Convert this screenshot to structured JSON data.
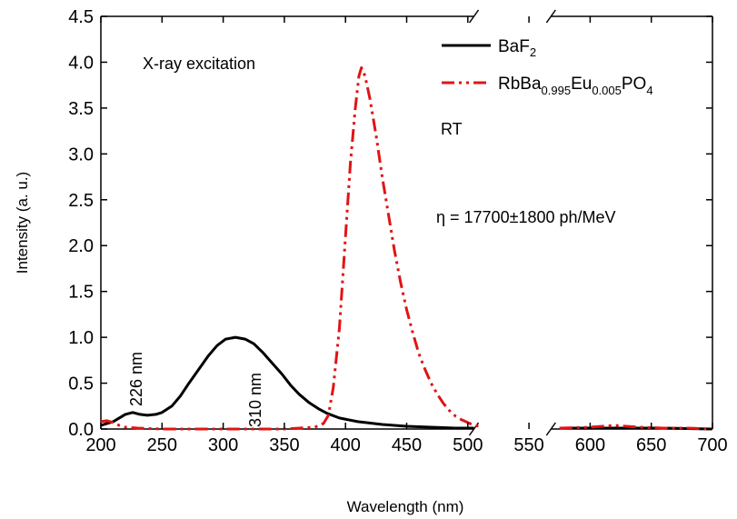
{
  "chart_data": {
    "type": "line",
    "xlabel": "Wavelength (nm)",
    "ylabel": "Intensity (a. u.)",
    "xlim": [
      200,
      700
    ],
    "ylim": [
      0.0,
      4.5
    ],
    "axis_break": [
      510,
      570
    ],
    "x_tick_labels": [
      "200",
      "250",
      "300",
      "350",
      "400",
      "450",
      "500",
      "550",
      "600",
      "650",
      "700"
    ],
    "y_tick_labels": [
      "0.0",
      "0.5",
      "1.0",
      "1.5",
      "2.0",
      "2.5",
      "3.0",
      "3.5",
      "4.0",
      "4.5"
    ],
    "legend_position": "top-right",
    "annotations": {
      "xray": "X-ray excitation",
      "rt": "RT",
      "eta": "η = 17700±1800 ph/MeV",
      "peak226": "226 nm",
      "peak310": "310 nm"
    },
    "legend": {
      "baf2": {
        "base": "BaF",
        "sub": "2"
      },
      "rbba": {
        "p1": "RbBa",
        "s1": "0.995",
        "p2": "Eu",
        "s2": "0.005",
        "p3": "PO",
        "s3": "4"
      }
    },
    "series": [
      {
        "key": "baf2",
        "color": "#000000",
        "style": "solid",
        "points": [
          [
            200,
            0.04
          ],
          [
            205,
            0.06
          ],
          [
            210,
            0.08
          ],
          [
            215,
            0.12
          ],
          [
            220,
            0.16
          ],
          [
            226,
            0.18
          ],
          [
            232,
            0.16
          ],
          [
            238,
            0.15
          ],
          [
            245,
            0.16
          ],
          [
            250,
            0.18
          ],
          [
            258,
            0.25
          ],
          [
            265,
            0.36
          ],
          [
            272,
            0.5
          ],
          [
            280,
            0.65
          ],
          [
            288,
            0.8
          ],
          [
            295,
            0.91
          ],
          [
            302,
            0.98
          ],
          [
            310,
            1.0
          ],
          [
            318,
            0.98
          ],
          [
            325,
            0.93
          ],
          [
            332,
            0.84
          ],
          [
            340,
            0.72
          ],
          [
            348,
            0.6
          ],
          [
            355,
            0.48
          ],
          [
            362,
            0.38
          ],
          [
            370,
            0.29
          ],
          [
            378,
            0.22
          ],
          [
            385,
            0.17
          ],
          [
            395,
            0.12
          ],
          [
            410,
            0.08
          ],
          [
            430,
            0.05
          ],
          [
            450,
            0.03
          ],
          [
            470,
            0.02
          ],
          [
            490,
            0.01
          ],
          [
            505,
            0.01
          ],
          [
            575,
            0.01
          ],
          [
            620,
            0.01
          ],
          [
            660,
            0.01
          ],
          [
            700,
            0.0
          ]
        ]
      },
      {
        "key": "rbba",
        "color": "#e01414",
        "style": "dash-dot-dot",
        "points": [
          [
            200,
            0.08
          ],
          [
            205,
            0.09
          ],
          [
            210,
            0.07
          ],
          [
            215,
            0.04
          ],
          [
            220,
            0.02
          ],
          [
            230,
            0.01
          ],
          [
            250,
            0.0
          ],
          [
            300,
            0.0
          ],
          [
            350,
            0.0
          ],
          [
            375,
            0.02
          ],
          [
            382,
            0.06
          ],
          [
            386,
            0.15
          ],
          [
            390,
            0.45
          ],
          [
            395,
            1.1
          ],
          [
            400,
            2.1
          ],
          [
            404,
            2.9
          ],
          [
            408,
            3.5
          ],
          [
            411,
            3.85
          ],
          [
            413,
            3.94
          ],
          [
            416,
            3.85
          ],
          [
            420,
            3.6
          ],
          [
            425,
            3.2
          ],
          [
            430,
            2.75
          ],
          [
            435,
            2.35
          ],
          [
            440,
            1.95
          ],
          [
            445,
            1.6
          ],
          [
            450,
            1.3
          ],
          [
            455,
            1.05
          ],
          [
            460,
            0.82
          ],
          [
            465,
            0.65
          ],
          [
            470,
            0.5
          ],
          [
            475,
            0.38
          ],
          [
            480,
            0.28
          ],
          [
            485,
            0.2
          ],
          [
            490,
            0.14
          ],
          [
            495,
            0.1
          ],
          [
            500,
            0.07
          ],
          [
            505,
            0.04
          ],
          [
            510,
            0.03
          ],
          [
            575,
            0.01
          ],
          [
            600,
            0.02
          ],
          [
            620,
            0.04
          ],
          [
            640,
            0.02
          ],
          [
            660,
            0.01
          ],
          [
            680,
            0.01
          ],
          [
            700,
            0.0
          ]
        ]
      }
    ]
  }
}
